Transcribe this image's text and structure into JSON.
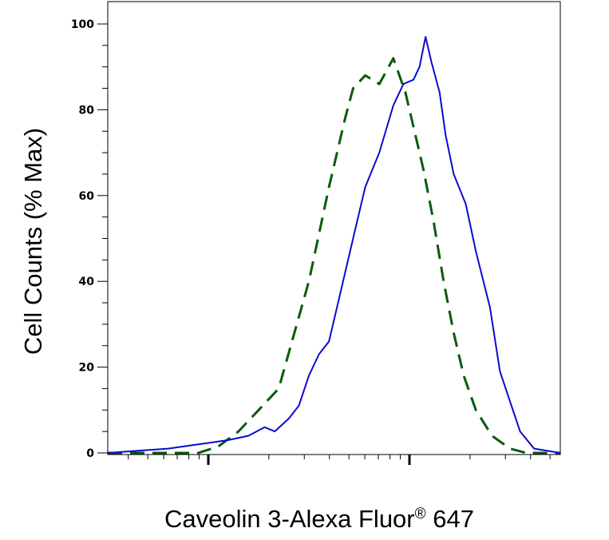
{
  "chart_data": {
    "type": "line",
    "xlabel_main": "Caveolin 3-Alexa Fluor",
    "xlabel_reg": "®",
    "xlabel_tail": " 647",
    "ylabel": "Cell Counts (% Max)",
    "x_scale": "log",
    "x_range_log10": [
      -0.5,
      1.75
    ],
    "ylim": [
      0,
      100
    ],
    "yticks": [
      0,
      20,
      40,
      60,
      80,
      100
    ],
    "ytick_labels": [
      "0",
      "20",
      "40",
      "60",
      "80",
      "100"
    ],
    "xtick_labels": [],
    "grid": false,
    "legend": "none",
    "series": [
      {
        "style": "dashed",
        "color": "#0b5a0b",
        "x_log10": [
          -0.5,
          -0.05,
          0.05,
          0.15,
          0.25,
          0.35,
          0.5,
          0.6,
          0.68,
          0.72,
          0.78,
          0.85,
          0.92,
          0.98,
          1.0,
          1.04,
          1.07,
          1.12,
          1.17,
          1.22,
          1.27,
          1.33,
          1.41,
          1.5,
          1.58,
          1.66,
          1.75
        ],
        "y": [
          0,
          0,
          1.5,
          5,
          10,
          15,
          40,
          62,
          78,
          85,
          88,
          86,
          92,
          84,
          80,
          72,
          66,
          54,
          40,
          28,
          18,
          10,
          4,
          1,
          0,
          0,
          0
        ]
      },
      {
        "style": "solid",
        "color": "#0a0ad2",
        "x_log10": [
          -0.5,
          -0.35,
          -0.2,
          -0.05,
          0.1,
          0.2,
          0.28,
          0.33,
          0.4,
          0.45,
          0.5,
          0.55,
          0.6,
          0.65,
          0.72,
          0.78,
          0.85,
          0.92,
          0.97,
          1.02,
          1.05,
          1.08,
          1.11,
          1.15,
          1.18,
          1.22,
          1.28,
          1.33,
          1.4,
          1.45,
          1.5,
          1.55,
          1.62,
          1.75
        ],
        "y": [
          0,
          0.5,
          1,
          2,
          3,
          4,
          6,
          5,
          8,
          11,
          18,
          23,
          26,
          36,
          50,
          62,
          70,
          81,
          86,
          87,
          90,
          97,
          91,
          84,
          74,
          65,
          58,
          47,
          34,
          19,
          12,
          5,
          1,
          0
        ]
      }
    ]
  }
}
